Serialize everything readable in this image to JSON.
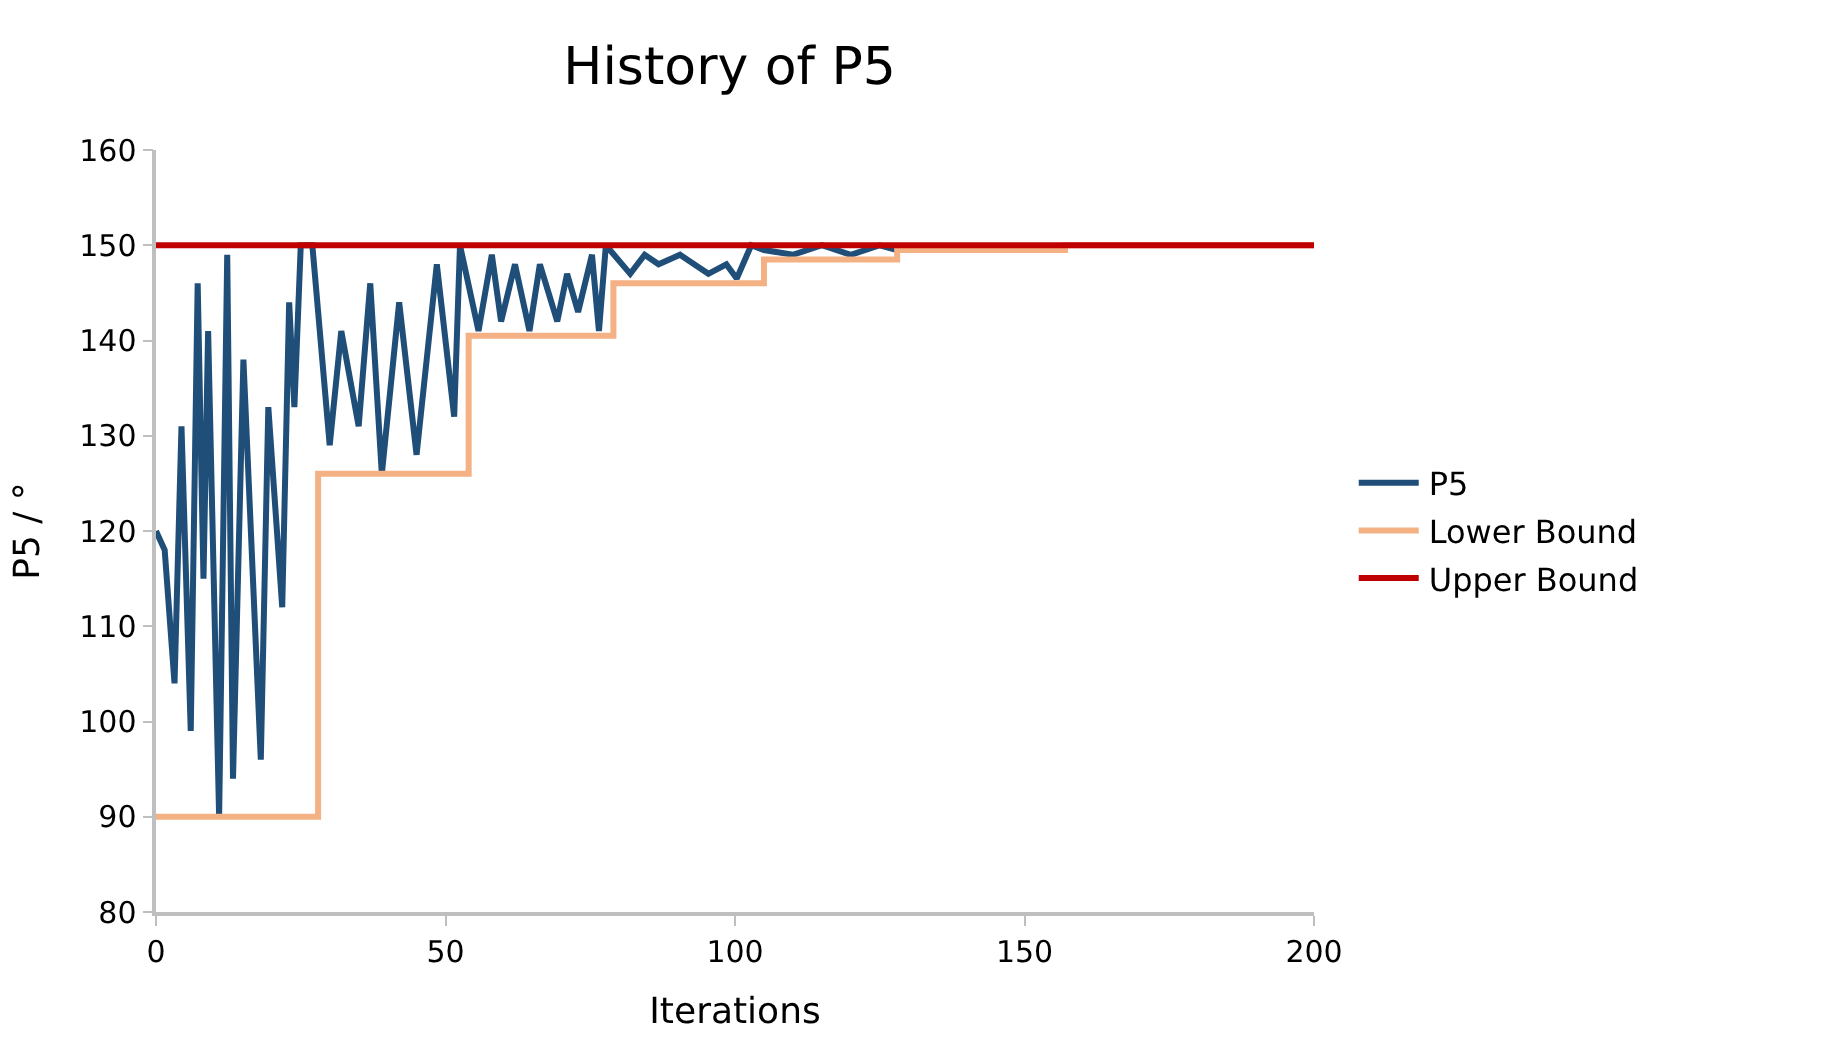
{
  "chart_data": {
    "type": "line",
    "title": "History of P5",
    "xlabel": "Iterations",
    "ylabel": "P5 / °",
    "xlim": [
      0,
      200
    ],
    "xticks": [
      0,
      50,
      100,
      150,
      200
    ],
    "ylim": [
      80,
      160
    ],
    "yticks": [
      80,
      90,
      100,
      110,
      120,
      130,
      140,
      150,
      160
    ],
    "grid": false,
    "legend": "right",
    "line_style": "solid",
    "series": [
      {
        "name": "P5",
        "color": "#1f4e79",
        "x": [
          0,
          1.5,
          3.2,
          4.4,
          6,
          7.2,
          8.2,
          9,
          10.9,
          12.3,
          13.3,
          15.1,
          18.1,
          19.4,
          21.8,
          23,
          23.9,
          25,
          27,
          30,
          32,
          35,
          37,
          39,
          42,
          45,
          48.5,
          51.5,
          52.5,
          55.7,
          58,
          59.6,
          62,
          64.5,
          66.3,
          69.3,
          71,
          72.9,
          75.3,
          76.5,
          77.7,
          81.9,
          84.4,
          86.8,
          90.5,
          95.4,
          98.5,
          100.3,
          102.8,
          105,
          110,
          115,
          120,
          125,
          128
        ],
        "values": [
          120,
          118,
          104,
          131,
          99,
          146,
          115,
          141,
          90,
          149,
          94,
          138,
          96,
          133,
          112,
          144,
          133,
          150,
          150,
          129,
          141,
          131,
          146,
          126,
          144,
          128,
          148,
          132,
          150,
          141,
          149,
          142,
          148,
          141,
          148,
          142,
          147,
          143,
          149,
          141,
          150,
          147,
          149,
          148,
          149,
          147,
          148,
          146.5,
          150,
          149.5,
          149,
          150,
          149,
          150,
          149.5
        ]
      },
      {
        "name": "Lower Bound",
        "color": "#f4b183",
        "type": "step",
        "x": [
          0,
          28,
          54,
          79,
          105,
          128,
          157,
          200
        ],
        "values": [
          90,
          126,
          140.5,
          146,
          148.5,
          149.5,
          150,
          150
        ]
      },
      {
        "name": "Upper Bound",
        "color": "#c00000",
        "x": [
          0,
          200
        ],
        "values": [
          150,
          150
        ]
      }
    ]
  }
}
